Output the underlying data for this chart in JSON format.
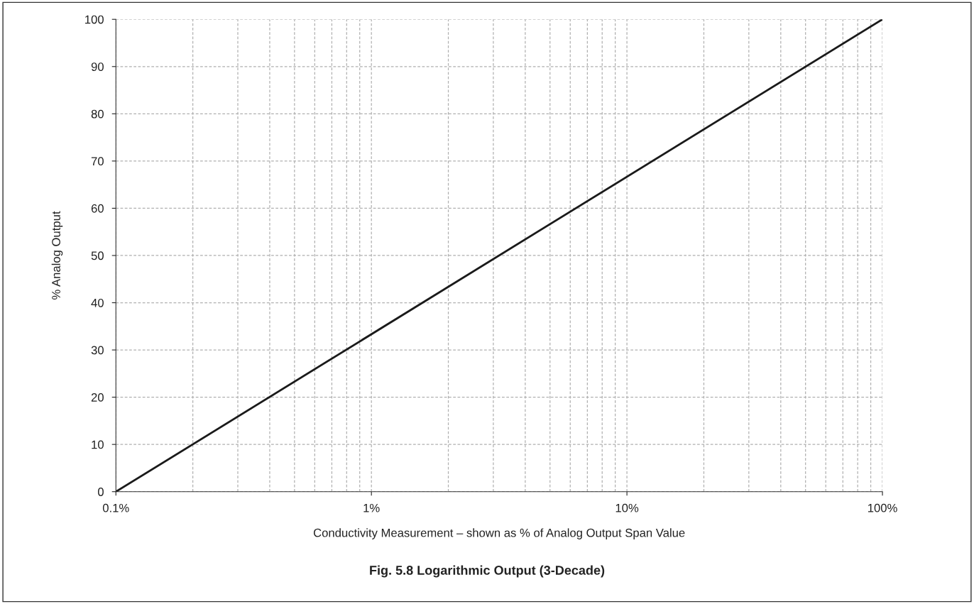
{
  "chart_data": {
    "type": "line",
    "title": "Fig. 5.8 Logarithmic Output (3-Decade)",
    "xlabel": "Conductivity Measurement – shown as % of Analog Output Span Value",
    "ylabel": "% Analog Output",
    "log": "x",
    "grid": true,
    "line_style": "solid",
    "marker": "none",
    "x": [
      0.1,
      100
    ],
    "series": [
      {
        "color": "#1a1a1a",
        "values": [
          0,
          100
        ]
      }
    ],
    "xlim": [
      0.1,
      100
    ],
    "ylim": [
      0,
      100
    ],
    "xticks": [
      {
        "value": 0.1,
        "label": "0.1%"
      },
      {
        "value": 0.2,
        "label": null
      },
      {
        "value": 0.3,
        "label": null
      },
      {
        "value": 0.4,
        "label": null
      },
      {
        "value": 0.5,
        "label": null
      },
      {
        "value": 0.6,
        "label": null
      },
      {
        "value": 0.7,
        "label": null
      },
      {
        "value": 0.8,
        "label": null
      },
      {
        "value": 0.9,
        "label": null
      },
      {
        "value": 1,
        "label": "1%"
      },
      {
        "value": 2,
        "label": null
      },
      {
        "value": 3,
        "label": null
      },
      {
        "value": 4,
        "label": null
      },
      {
        "value": 5,
        "label": null
      },
      {
        "value": 6,
        "label": null
      },
      {
        "value": 7,
        "label": null
      },
      {
        "value": 8,
        "label": null
      },
      {
        "value": 9,
        "label": null
      },
      {
        "value": 10,
        "label": "10%"
      },
      {
        "value": 20,
        "label": null
      },
      {
        "value": 30,
        "label": null
      },
      {
        "value": 40,
        "label": null
      },
      {
        "value": 50,
        "label": null
      },
      {
        "value": 60,
        "label": null
      },
      {
        "value": 70,
        "label": null
      },
      {
        "value": 80,
        "label": null
      },
      {
        "value": 90,
        "label": null
      },
      {
        "value": 100,
        "label": "100%"
      }
    ],
    "yticks": [
      0,
      10,
      20,
      30,
      40,
      50,
      60,
      70,
      80,
      90,
      100
    ]
  }
}
